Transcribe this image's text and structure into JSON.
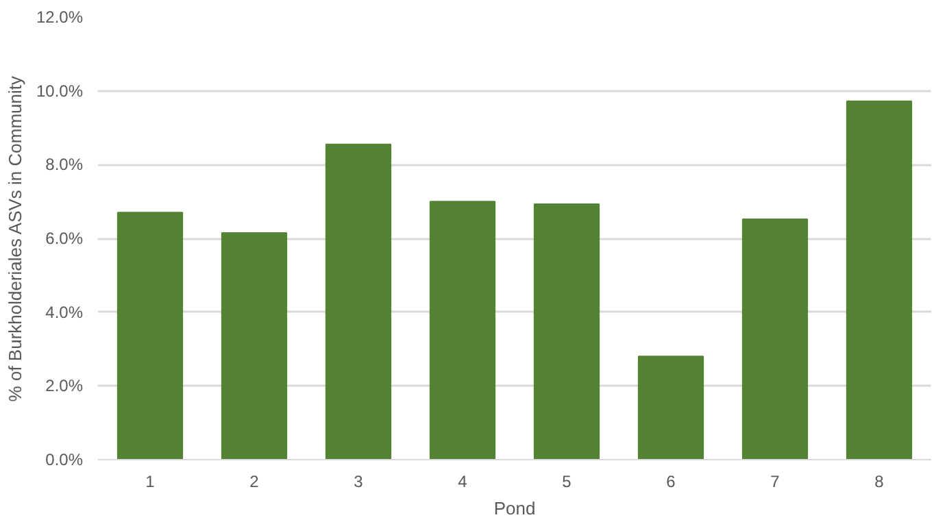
{
  "chart_data": {
    "type": "bar",
    "xlabel": "Pond",
    "ylabel": "% of Burkholderiales ASVs in Community",
    "categories": [
      "1",
      "2",
      "3",
      "4",
      "5",
      "6",
      "7",
      "8"
    ],
    "values": [
      6.7,
      6.15,
      8.55,
      7.0,
      6.93,
      2.8,
      6.52,
      9.72
    ],
    "color": "#548235",
    "ylim": [
      0,
      12
    ],
    "yticks": [
      {
        "value": 0,
        "label": "0.0%"
      },
      {
        "value": 2,
        "label": "2.0%"
      },
      {
        "value": 4,
        "label": "4.0%"
      },
      {
        "value": 6,
        "label": "6.0%"
      },
      {
        "value": 8,
        "label": "8.0%"
      },
      {
        "value": 10,
        "label": "10.0%"
      },
      {
        "value": 12,
        "label": "12.0%"
      }
    ],
    "grid": "y"
  }
}
